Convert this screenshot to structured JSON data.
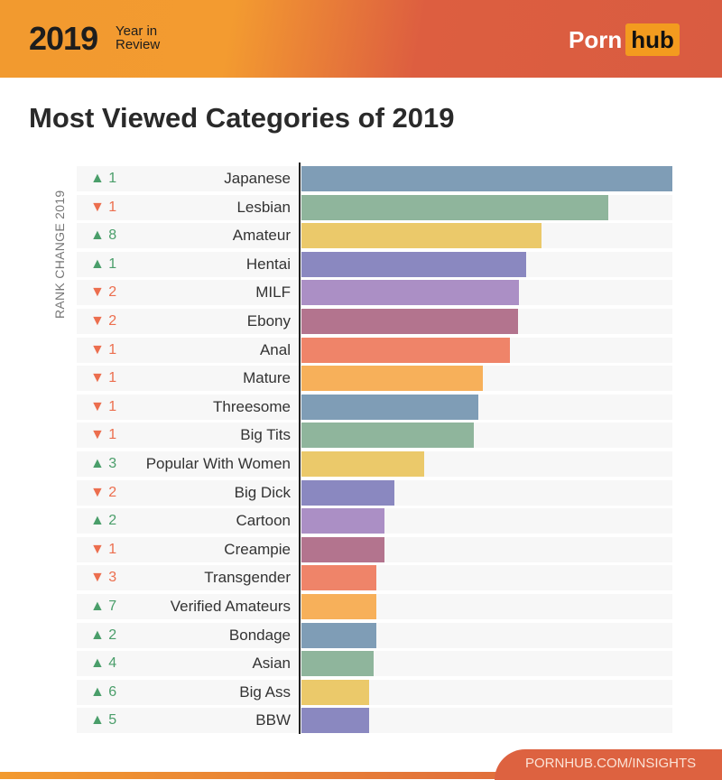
{
  "header": {
    "year": "2019",
    "subtitle_line1": "Year in",
    "subtitle_line2": "Review",
    "logo_left": "Porn",
    "logo_right": "hub"
  },
  "footer": {
    "link": "PORNHUB.COM/INSIGHTS"
  },
  "colors": {
    "up": "#4a9e6a",
    "down": "#ec6e4e",
    "palette": [
      "#7f9db6",
      "#8fb59c",
      "#ebc96a",
      "#8a88c0",
      "#ab8fc5",
      "#b3748e",
      "#ef8469",
      "#f7b05a"
    ]
  },
  "chart_data": {
    "type": "bar",
    "orientation": "horizontal",
    "title": "Most Viewed Categories of 2019",
    "ylabel": "RANK CHANGE 2019",
    "value_note": "relative bar length, top category = 100 (no value axis printed)",
    "xlim": [
      0,
      100
    ],
    "grid": false,
    "categories": [
      "Japanese",
      "Lesbian",
      "Amateur",
      "Hentai",
      "MILF",
      "Ebony",
      "Anal",
      "Mature",
      "Threesome",
      "Big Tits",
      "Popular With Women",
      "Big Dick",
      "Cartoon",
      "Creampie",
      "Transgender",
      "Verified Amateurs",
      "Bondage",
      "Asian",
      "Big Ass",
      "BBW"
    ],
    "values": [
      100,
      82.8,
      64.6,
      60.7,
      58.7,
      58.5,
      56.1,
      49.0,
      47.6,
      46.4,
      33.0,
      25.0,
      22.3,
      22.3,
      20.1,
      20.1,
      20.1,
      19.4,
      18.2,
      18.2
    ],
    "rank_change": [
      {
        "dir": "up",
        "text": "▲ 1"
      },
      {
        "dir": "down",
        "text": "▼ 1"
      },
      {
        "dir": "up",
        "text": "▲ 8"
      },
      {
        "dir": "up",
        "text": "▲ 1"
      },
      {
        "dir": "down",
        "text": "▼ 2"
      },
      {
        "dir": "down",
        "text": "▼ 2"
      },
      {
        "dir": "down",
        "text": "▼ 1"
      },
      {
        "dir": "down",
        "text": "▼ 1"
      },
      {
        "dir": "down",
        "text": "▼ 1"
      },
      {
        "dir": "down",
        "text": "▼ 1"
      },
      {
        "dir": "up",
        "text": "▲ 3"
      },
      {
        "dir": "down",
        "text": "▼ 2"
      },
      {
        "dir": "up",
        "text": "▲ 2"
      },
      {
        "dir": "down",
        "text": "▼ 1"
      },
      {
        "dir": "down",
        "text": "▼ 3"
      },
      {
        "dir": "up",
        "text": "▲ 7"
      },
      {
        "dir": "up",
        "text": "▲ 2"
      },
      {
        "dir": "up",
        "text": "▲ 4"
      },
      {
        "dir": "up",
        "text": "▲ 6"
      },
      {
        "dir": "up",
        "text": "▲ 5"
      }
    ]
  }
}
